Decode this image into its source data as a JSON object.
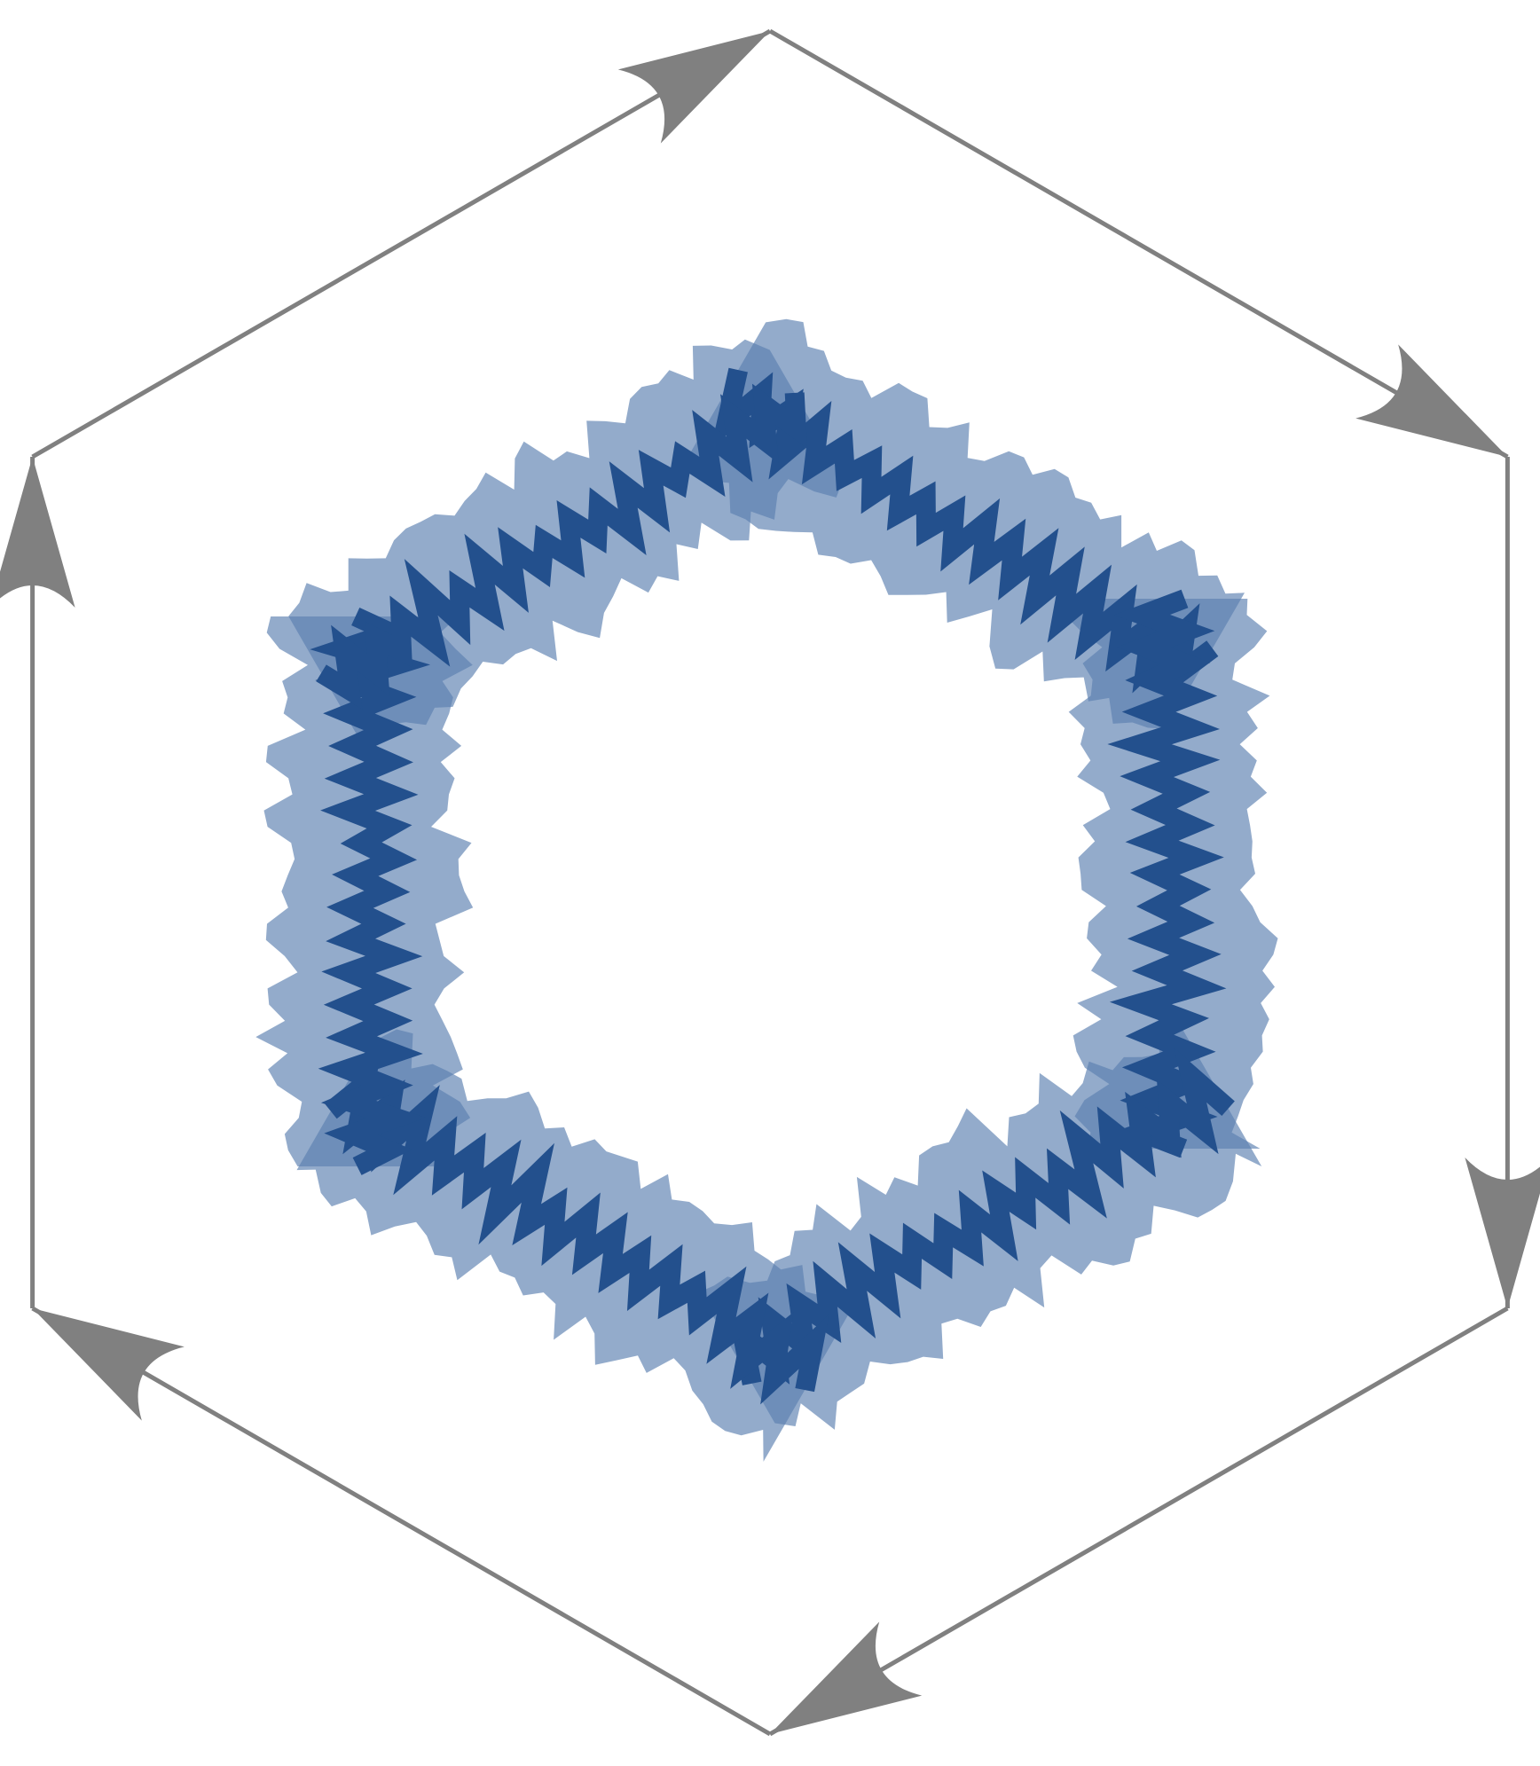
{
  "diagram": {
    "orientation": "clockwise",
    "outer_edge_count": 6,
    "inner_segment_count": 6,
    "colors": {
      "outer_edge": "#808080",
      "arrowhead": "#808080",
      "band_fill": "#5b7fb0",
      "band_opacity": 0.66,
      "zigzag_stroke": "#23508d",
      "background": "#ffffff"
    },
    "icons": {
      "arrowhead": "arrowhead-icon"
    }
  }
}
